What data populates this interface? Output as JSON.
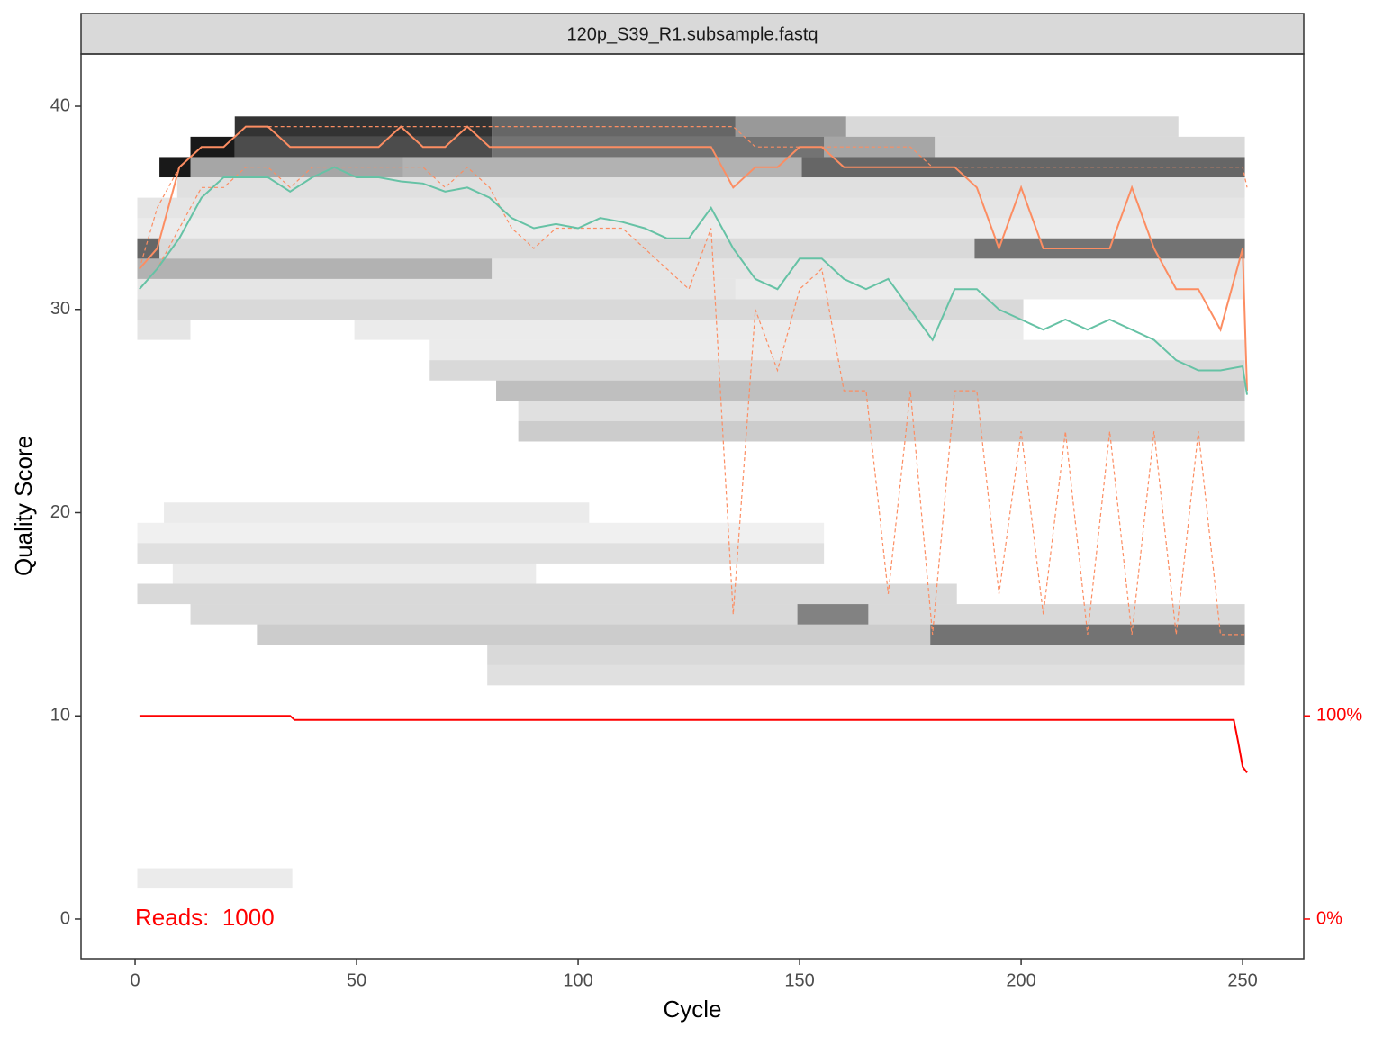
{
  "chart_data": {
    "type": "line",
    "strip_title": "120p_S39_R1.subsample.fastq",
    "xlabel": "Cycle",
    "ylabel": "Quality Score",
    "annotation": {
      "text": "Reads:  1000",
      "color": "#ff0000"
    },
    "xlim": [
      -12.2,
      263.8
    ],
    "ylim": [
      -1.95,
      42.57
    ],
    "y2lim": [
      -19.5,
      425.7
    ],
    "xticks": [
      0,
      50,
      100,
      150,
      200,
      250
    ],
    "yticks": [
      0,
      10,
      20,
      30,
      40
    ],
    "y2ticks": [
      {
        "value": 0,
        "label": "0%"
      },
      {
        "value": 100,
        "label": "100%"
      }
    ],
    "x": [
      1,
      5,
      10,
      15,
      20,
      25,
      30,
      35,
      40,
      45,
      50,
      55,
      60,
      65,
      70,
      75,
      80,
      85,
      90,
      95,
      100,
      105,
      110,
      115,
      120,
      125,
      130,
      135,
      140,
      145,
      150,
      155,
      160,
      165,
      170,
      175,
      180,
      185,
      190,
      195,
      200,
      205,
      210,
      215,
      220,
      225,
      230,
      235,
      240,
      245,
      250,
      251
    ],
    "series": [
      {
        "color": "#fc8d62",
        "dash": true,
        "values": [
          31,
          32,
          34,
          36,
          36,
          37,
          37,
          36,
          37,
          37,
          37,
          37,
          37,
          37,
          36,
          37,
          36,
          34,
          33,
          34,
          34,
          34,
          34,
          33,
          32,
          31,
          34,
          15,
          30,
          27,
          31,
          32,
          26,
          26,
          16,
          26,
          14,
          26,
          26,
          16,
          24,
          15,
          24,
          14,
          24,
          14,
          24,
          14,
          24,
          14,
          14,
          14
        ]
      },
      {
        "color": "#fc8d62",
        "dash": true,
        "values": [
          32,
          35,
          37,
          38,
          38,
          39,
          39,
          39,
          39,
          39,
          39,
          39,
          39,
          39,
          39,
          39,
          39,
          39,
          39,
          39,
          39,
          39,
          39,
          39,
          39,
          39,
          39,
          39,
          38,
          38,
          38,
          38,
          38,
          38,
          38,
          38,
          37,
          37,
          37,
          37,
          37,
          37,
          37,
          37,
          37,
          37,
          37,
          37,
          37,
          37,
          37,
          36
        ]
      },
      {
        "color": "#fc8d62",
        "dash": false,
        "values": [
          32,
          33,
          37,
          38,
          38,
          39,
          39,
          38,
          38,
          38,
          38,
          38,
          39,
          38,
          38,
          39,
          38,
          38,
          38,
          38,
          38,
          38,
          38,
          38,
          38,
          38,
          38,
          36,
          37,
          37,
          38,
          38,
          37,
          37,
          37,
          37,
          37,
          37,
          36,
          33,
          36,
          33,
          33,
          33,
          33,
          36,
          33,
          31,
          31,
          29,
          33,
          26
        ]
      },
      {
        "color": "#66c2a5",
        "dash": false,
        "values": [
          31,
          32,
          33.5,
          35.5,
          36.5,
          36.5,
          36.5,
          35.8,
          36.5,
          37,
          36.5,
          36.5,
          36.3,
          36.2,
          35.8,
          36,
          35.5,
          34.5,
          34,
          34.2,
          34,
          34.5,
          34.3,
          34,
          33.5,
          33.5,
          35,
          33,
          31.5,
          31,
          32.5,
          32.5,
          31.5,
          31,
          31.5,
          30,
          28.5,
          31,
          31,
          30,
          29.5,
          29,
          29.5,
          29,
          29.5,
          29,
          28.5,
          27.5,
          27,
          27,
          27.2,
          25.8
        ]
      },
      {
        "color": "#ff0000",
        "dash": false,
        "axis": "y2",
        "x": [
          1,
          35,
          36,
          248,
          249,
          250,
          251
        ],
        "values": [
          100,
          100,
          98,
          98,
          87,
          75,
          72
        ]
      }
    ],
    "heatmap": [
      {
        "q": 39,
        "x": [
          23,
          80
        ],
        "alpha": 0.8
      },
      {
        "q": 39,
        "x": [
          81,
          135
        ],
        "alpha": 0.6
      },
      {
        "q": 39,
        "x": [
          136,
          160
        ],
        "alpha": 0.4
      },
      {
        "q": 39,
        "x": [
          161,
          235
        ],
        "alpha": 0.15
      },
      {
        "q": 38,
        "x": [
          13,
          22
        ],
        "alpha": 0.9
      },
      {
        "q": 38,
        "x": [
          23,
          80
        ],
        "alpha": 0.7
      },
      {
        "q": 38,
        "x": [
          81,
          155
        ],
        "alpha": 0.55
      },
      {
        "q": 38,
        "x": [
          156,
          180
        ],
        "alpha": 0.35
      },
      {
        "q": 38,
        "x": [
          181,
          250
        ],
        "alpha": 0.15
      },
      {
        "q": 37,
        "x": [
          6,
          12
        ],
        "alpha": 0.9
      },
      {
        "q": 37,
        "x": [
          13,
          60
        ],
        "alpha": 0.35
      },
      {
        "q": 37,
        "x": [
          61,
          150
        ],
        "alpha": 0.3
      },
      {
        "q": 37,
        "x": [
          151,
          250
        ],
        "alpha": 0.6
      },
      {
        "q": 36,
        "x": [
          10,
          250
        ],
        "alpha": 0.12
      },
      {
        "q": 35,
        "x": [
          1,
          250
        ],
        "alpha": 0.1
      },
      {
        "q": 34,
        "x": [
          1,
          250
        ],
        "alpha": 0.08
      },
      {
        "q": 33,
        "x": [
          1,
          5
        ],
        "alpha": 0.6
      },
      {
        "q": 33,
        "x": [
          6,
          189
        ],
        "alpha": 0.15
      },
      {
        "q": 33,
        "x": [
          190,
          250
        ],
        "alpha": 0.55
      },
      {
        "q": 32,
        "x": [
          1,
          80
        ],
        "alpha": 0.3
      },
      {
        "q": 32,
        "x": [
          81,
          250
        ],
        "alpha": 0.1
      },
      {
        "q": 31,
        "x": [
          1,
          135
        ],
        "alpha": 0.1
      },
      {
        "q": 31,
        "x": [
          136,
          250
        ],
        "alpha": 0.08
      },
      {
        "q": 30,
        "x": [
          1,
          200
        ],
        "alpha": 0.15
      },
      {
        "q": 29,
        "x": [
          1,
          12
        ],
        "alpha": 0.1
      },
      {
        "q": 29,
        "x": [
          50,
          200
        ],
        "alpha": 0.08
      },
      {
        "q": 28,
        "x": [
          67,
          250
        ],
        "alpha": 0.08
      },
      {
        "q": 27,
        "x": [
          67,
          250
        ],
        "alpha": 0.15
      },
      {
        "q": 26,
        "x": [
          82,
          250
        ],
        "alpha": 0.25
      },
      {
        "q": 25,
        "x": [
          87,
          250
        ],
        "alpha": 0.12
      },
      {
        "q": 24,
        "x": [
          87,
          250
        ],
        "alpha": 0.2
      },
      {
        "q": 20,
        "x": [
          7,
          102
        ],
        "alpha": 0.08
      },
      {
        "q": 19,
        "x": [
          1,
          155
        ],
        "alpha": 0.06
      },
      {
        "q": 18,
        "x": [
          1,
          155
        ],
        "alpha": 0.12
      },
      {
        "q": 17,
        "x": [
          9,
          90
        ],
        "alpha": 0.08
      },
      {
        "q": 16,
        "x": [
          1,
          185
        ],
        "alpha": 0.15
      },
      {
        "q": 15,
        "x": [
          13,
          250
        ],
        "alpha": 0.15
      },
      {
        "q": 15,
        "x": [
          150,
          165
        ],
        "alpha": 0.4
      },
      {
        "q": 14,
        "x": [
          28,
          179
        ],
        "alpha": 0.2
      },
      {
        "q": 14,
        "x": [
          180,
          250
        ],
        "alpha": 0.55
      },
      {
        "q": 13,
        "x": [
          80,
          250
        ],
        "alpha": 0.15
      },
      {
        "q": 12,
        "x": [
          80,
          250
        ],
        "alpha": 0.12
      },
      {
        "q": 2,
        "x": [
          1,
          35
        ],
        "alpha": 0.08
      }
    ]
  }
}
